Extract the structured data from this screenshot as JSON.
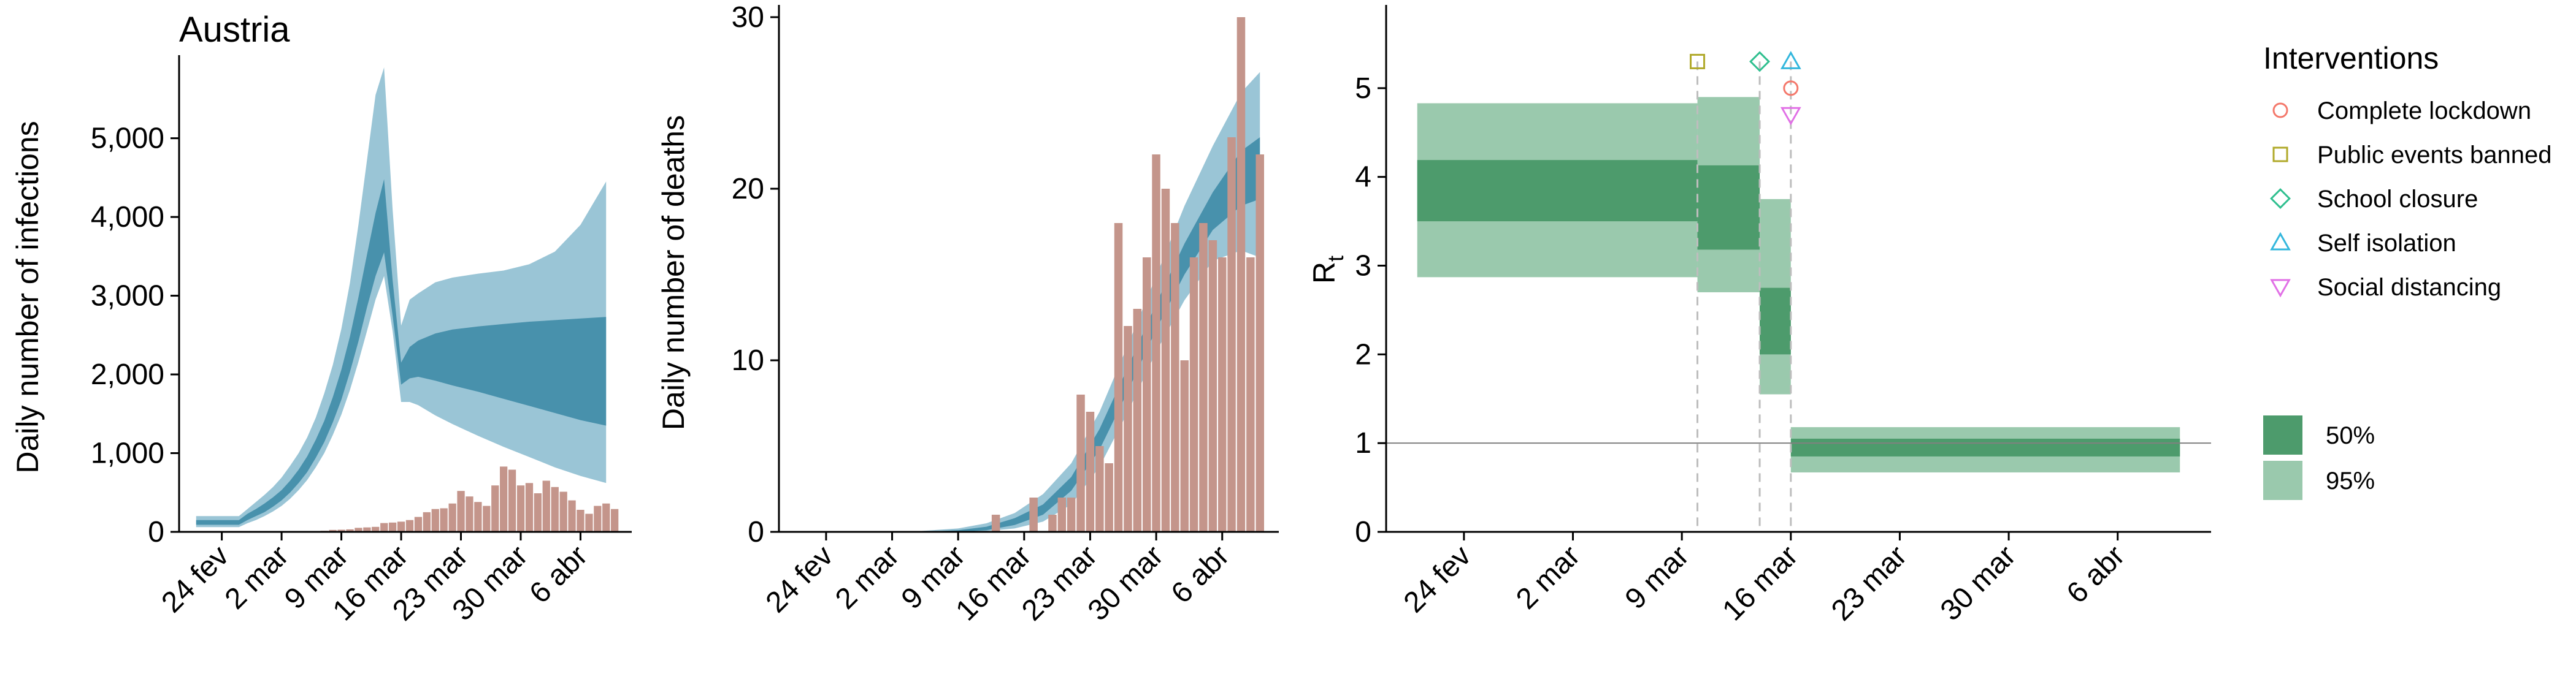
{
  "colors": {
    "ci95_blue": "#8cbdd0",
    "ci50_blue": "#3a87a5",
    "bars": "#c4958b",
    "ci95_green": "#9ac9ad",
    "ci50_green": "#4d9b6c",
    "lockdown": "#f4786b",
    "public_events": "#b0a92a",
    "school": "#2fbf8f",
    "self_isolation": "#34b7dd",
    "social_distancing": "#e170e6",
    "intervention_line": "#bdbdbd",
    "ref_line": "#808080",
    "axis": "#000000"
  },
  "chart_data": [
    {
      "type": "area",
      "id": "infections",
      "title": "Austria",
      "xlabel": "",
      "ylabel": "Daily number of infections",
      "ylim": [
        0,
        5900
      ],
      "yticks": [
        0,
        1000,
        2000,
        3000,
        4000,
        5000
      ],
      "ytick_labels": [
        "0",
        "1,000",
        "2,000",
        "3,000",
        "4,000",
        "5,000"
      ],
      "xlim": [
        "2020-02-19",
        "2020-04-12"
      ],
      "xticks": [
        "2020-02-24",
        "2020-03-02",
        "2020-03-09",
        "2020-03-16",
        "2020-03-23",
        "2020-03-30",
        "2020-04-06"
      ],
      "xtick_labels": [
        "24 fev",
        "2 mar",
        "9 mar",
        "16 mar",
        "23 mar",
        "30 mar",
        "6 abr"
      ],
      "band_95": {
        "x": [
          "2020-02-21",
          "2020-02-26",
          "2020-02-27",
          "2020-02-28",
          "2020-02-29",
          "2020-03-01",
          "2020-03-02",
          "2020-03-03",
          "2020-03-04",
          "2020-03-05",
          "2020-03-06",
          "2020-03-07",
          "2020-03-08",
          "2020-03-09",
          "2020-03-10",
          "2020-03-11",
          "2020-03-12",
          "2020-03-13",
          "2020-03-14",
          "2020-03-15",
          "2020-03-16",
          "2020-03-17",
          "2020-03-18",
          "2020-03-20",
          "2020-03-22",
          "2020-03-25",
          "2020-03-28",
          "2020-03-31",
          "2020-04-03",
          "2020-04-06",
          "2020-04-09"
        ],
        "low": [
          60,
          60,
          110,
          150,
          200,
          260,
          330,
          420,
          530,
          660,
          820,
          1000,
          1230,
          1490,
          1800,
          2160,
          2550,
          2950,
          3250,
          2550,
          1650,
          1650,
          1610,
          1480,
          1370,
          1220,
          1080,
          950,
          820,
          710,
          620
        ],
        "high": [
          200,
          200,
          290,
          380,
          470,
          570,
          690,
          840,
          1000,
          1200,
          1450,
          1760,
          2120,
          2580,
          3160,
          3900,
          4720,
          5550,
          5900,
          4100,
          2620,
          2950,
          3030,
          3170,
          3230,
          3280,
          3320,
          3400,
          3560,
          3900,
          4450
        ]
      },
      "band_50": {
        "x": [
          "2020-02-21",
          "2020-02-26",
          "2020-02-27",
          "2020-02-28",
          "2020-02-29",
          "2020-03-01",
          "2020-03-02",
          "2020-03-03",
          "2020-03-04",
          "2020-03-05",
          "2020-03-06",
          "2020-03-07",
          "2020-03-08",
          "2020-03-09",
          "2020-03-10",
          "2020-03-11",
          "2020-03-12",
          "2020-03-13",
          "2020-03-14",
          "2020-03-15",
          "2020-03-16",
          "2020-03-17",
          "2020-03-18",
          "2020-03-20",
          "2020-03-22",
          "2020-03-25",
          "2020-03-28",
          "2020-03-31",
          "2020-04-03",
          "2020-04-06",
          "2020-04-09"
        ],
        "low": [
          90,
          90,
          150,
          200,
          250,
          320,
          400,
          500,
          620,
          760,
          940,
          1140,
          1390,
          1680,
          2030,
          2420,
          2850,
          3250,
          3550,
          2750,
          1870,
          1950,
          1970,
          1920,
          1860,
          1780,
          1690,
          1600,
          1510,
          1420,
          1350
        ],
        "high": [
          150,
          150,
          230,
          290,
          360,
          440,
          530,
          650,
          790,
          960,
          1170,
          1410,
          1710,
          2060,
          2480,
          2980,
          3520,
          4050,
          4480,
          3200,
          2150,
          2350,
          2430,
          2520,
          2570,
          2610,
          2640,
          2670,
          2690,
          2710,
          2730
        ]
      },
      "bars": {
        "x": [
          "2020-02-25",
          "2020-02-26",
          "2020-02-27",
          "2020-02-28",
          "2020-02-29",
          "2020-03-01",
          "2020-03-02",
          "2020-03-03",
          "2020-03-04",
          "2020-03-05",
          "2020-03-06",
          "2020-03-07",
          "2020-03-08",
          "2020-03-09",
          "2020-03-10",
          "2020-03-11",
          "2020-03-12",
          "2020-03-13",
          "2020-03-14",
          "2020-03-15",
          "2020-03-16",
          "2020-03-17",
          "2020-03-18",
          "2020-03-19",
          "2020-03-20",
          "2020-03-21",
          "2020-03-22",
          "2020-03-23",
          "2020-03-24",
          "2020-03-25",
          "2020-03-26",
          "2020-03-27",
          "2020-03-28",
          "2020-03-29",
          "2020-03-30",
          "2020-03-31",
          "2020-04-01",
          "2020-04-02",
          "2020-04-03",
          "2020-04-04",
          "2020-04-05",
          "2020-04-06",
          "2020-04-07",
          "2020-04-08",
          "2020-04-09",
          "2020-04-10"
        ],
        "values": [
          2,
          0,
          3,
          1,
          3,
          2,
          1,
          3,
          5,
          6,
          10,
          14,
          25,
          27,
          32,
          51,
          57,
          64,
          112,
          118,
          130,
          150,
          190,
          250,
          290,
          300,
          360,
          520,
          450,
          380,
          330,
          590,
          830,
          790,
          590,
          620,
          490,
          650,
          570,
          510,
          400,
          280,
          230,
          330,
          360,
          290
        ]
      }
    },
    {
      "type": "area",
      "id": "deaths",
      "title": "",
      "xlabel": "",
      "ylabel": "Daily number of deaths",
      "ylim": [
        0,
        30
      ],
      "yticks": [
        0,
        10,
        20,
        30
      ],
      "ytick_labels": [
        "0",
        "10",
        "20",
        "30"
      ],
      "xlim": [
        "2020-02-19",
        "2020-04-12"
      ],
      "xticks": [
        "2020-02-24",
        "2020-03-02",
        "2020-03-09",
        "2020-03-16",
        "2020-03-23",
        "2020-03-30",
        "2020-04-06"
      ],
      "xtick_labels": [
        "24 fev",
        "2 mar",
        "9 mar",
        "16 mar",
        "23 mar",
        "30 mar",
        "6 abr"
      ],
      "band_95": {
        "x": [
          "2020-02-21",
          "2020-03-01",
          "2020-03-05",
          "2020-03-09",
          "2020-03-12",
          "2020-03-15",
          "2020-03-18",
          "2020-03-21",
          "2020-03-24",
          "2020-03-27",
          "2020-03-30",
          "2020-04-02",
          "2020-04-05",
          "2020-04-08",
          "2020-04-10"
        ],
        "low": [
          0,
          0,
          0,
          0,
          0.05,
          0.2,
          0.6,
          1.6,
          3.8,
          7.0,
          10.5,
          13.5,
          15.8,
          16.4,
          16.0
        ],
        "high": [
          0,
          0,
          0.05,
          0.2,
          0.5,
          1.1,
          2.2,
          4.0,
          7.0,
          10.9,
          14.9,
          19.0,
          22.5,
          25.6,
          26.8
        ]
      },
      "band_50": {
        "x": [
          "2020-02-21",
          "2020-03-01",
          "2020-03-05",
          "2020-03-09",
          "2020-03-12",
          "2020-03-15",
          "2020-03-18",
          "2020-03-21",
          "2020-03-24",
          "2020-03-27",
          "2020-03-30",
          "2020-04-02",
          "2020-04-05",
          "2020-04-08",
          "2020-04-10"
        ],
        "low": [
          0,
          0,
          0,
          0,
          0.1,
          0.4,
          1.0,
          2.4,
          4.8,
          8.2,
          11.8,
          15.0,
          17.6,
          19.0,
          19.4
        ],
        "high": [
          0,
          0,
          0,
          0.1,
          0.3,
          0.8,
          1.6,
          3.2,
          6.0,
          9.6,
          13.3,
          16.8,
          19.8,
          22.2,
          23.0
        ]
      },
      "bars": {
        "x": [
          "2020-03-13",
          "2020-03-17",
          "2020-03-19",
          "2020-03-20",
          "2020-03-21",
          "2020-03-22",
          "2020-03-23",
          "2020-03-24",
          "2020-03-25",
          "2020-03-26",
          "2020-03-27",
          "2020-03-28",
          "2020-03-29",
          "2020-03-30",
          "2020-03-31",
          "2020-04-01",
          "2020-04-02",
          "2020-04-03",
          "2020-04-04",
          "2020-04-05",
          "2020-04-06",
          "2020-04-07",
          "2020-04-08",
          "2020-04-09",
          "2020-04-10"
        ],
        "values": [
          1,
          2,
          1,
          2,
          2,
          8,
          7,
          5,
          4,
          18,
          12,
          13,
          16,
          22,
          20,
          18,
          10,
          16,
          18,
          17,
          16,
          23,
          30,
          16,
          22
        ]
      }
    },
    {
      "type": "area",
      "id": "rt",
      "title": "",
      "xlabel": "",
      "ylabel": "R",
      "ylabel_sub": "t",
      "ylim": [
        0,
        5.8
      ],
      "yticks": [
        0,
        1,
        2,
        3,
        4,
        5
      ],
      "ytick_labels": [
        "0",
        "1",
        "2",
        "3",
        "4",
        "5"
      ],
      "xlim": [
        "2020-02-19",
        "2020-04-12"
      ],
      "xticks": [
        "2020-02-24",
        "2020-03-02",
        "2020-03-09",
        "2020-03-16",
        "2020-03-23",
        "2020-03-30",
        "2020-04-06"
      ],
      "xtick_labels": [
        "24 fev",
        "2 mar",
        "9 mar",
        "16 mar",
        "23 mar",
        "30 mar",
        "6 abr"
      ],
      "reference_line": 1,
      "segments": [
        {
          "start": "2020-02-21",
          "end": "2020-03-10",
          "q025": 2.87,
          "q25": 3.5,
          "q75": 4.19,
          "q975": 4.83
        },
        {
          "start": "2020-03-10",
          "end": "2020-03-14",
          "q025": 2.7,
          "q25": 3.18,
          "q75": 4.13,
          "q975": 4.9
        },
        {
          "start": "2020-03-14",
          "end": "2020-03-16",
          "q025": 1.55,
          "q25": 2.0,
          "q75": 2.75,
          "q975": 3.75
        },
        {
          "start": "2020-03-16",
          "end": "2020-04-10",
          "q025": 0.67,
          "q25": 0.85,
          "q75": 1.05,
          "q975": 1.18
        }
      ],
      "interventions": [
        {
          "name": "Public events banned",
          "date": "2020-03-10",
          "shape": "square",
          "y": 5.3
        },
        {
          "name": "School closure",
          "date": "2020-03-14",
          "shape": "diamond",
          "y": 5.3
        },
        {
          "name": "Self isolation",
          "date": "2020-03-16",
          "shape": "triangle-up",
          "y": 5.3
        },
        {
          "name": "Complete lockdown",
          "date": "2020-03-16",
          "shape": "circle",
          "y": 5.0
        },
        {
          "name": "Social distancing",
          "date": "2020-03-16",
          "shape": "triangle-down",
          "y": 4.7
        }
      ]
    }
  ],
  "legend": {
    "title": "Interventions",
    "items": [
      {
        "label": "Complete lockdown",
        "shape": "circle",
        "color": "#f4786b"
      },
      {
        "label": "Public events banned",
        "shape": "square",
        "color": "#b0a92a"
      },
      {
        "label": "School closure",
        "shape": "diamond",
        "color": "#2fbf8f"
      },
      {
        "label": "Self isolation",
        "shape": "triangle-up",
        "color": "#34b7dd"
      },
      {
        "label": "Social distancing",
        "shape": "triangle-down",
        "color": "#e170e6"
      }
    ],
    "ci_items": [
      {
        "label": "50%",
        "color": "#4d9b6c"
      },
      {
        "label": "95%",
        "color": "#9ac9ad"
      }
    ]
  }
}
